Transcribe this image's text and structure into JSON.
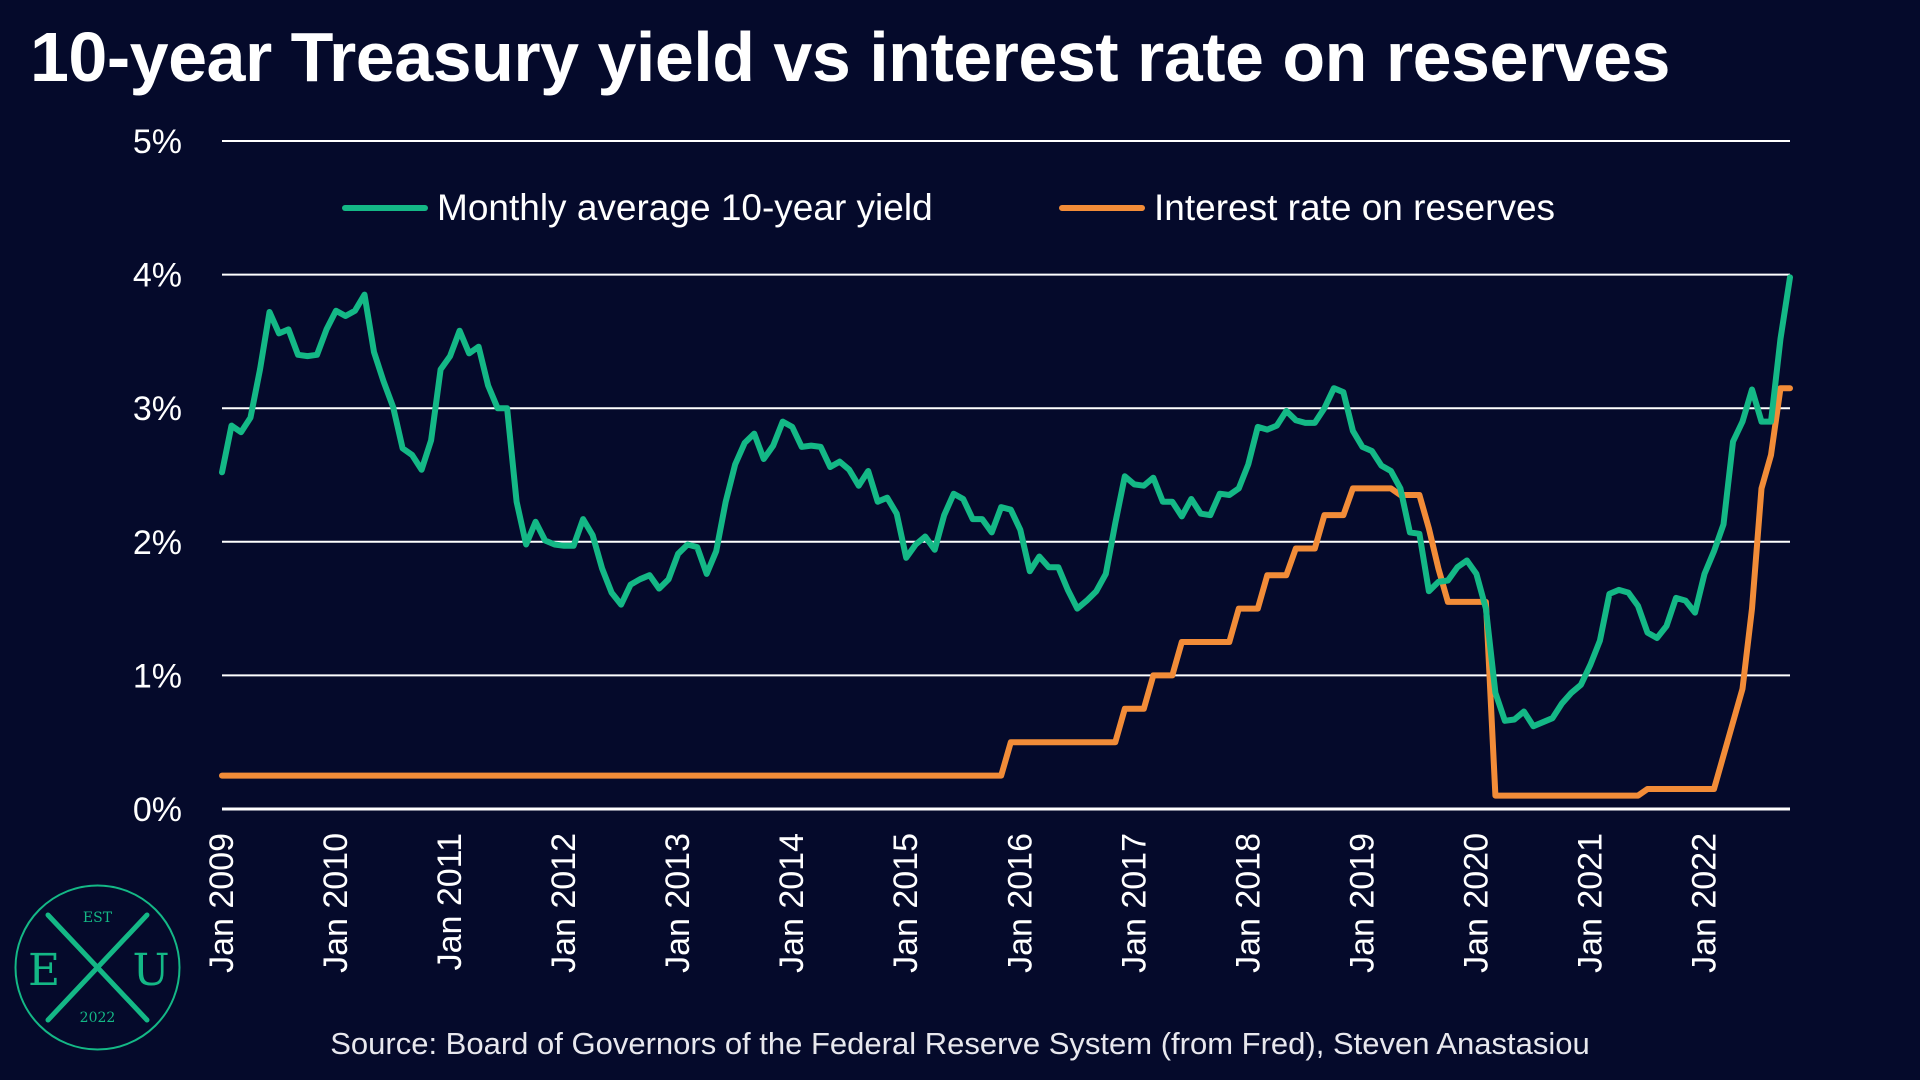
{
  "title": "10-year Treasury yield vs interest rate on reserves",
  "source": "Source: Board of Governors of the Federal Reserve System (from Fred), Steven Anastasiou",
  "colors": {
    "background": "#050a2b",
    "yield_line": "#14b886",
    "reserves_line": "#f28c38",
    "gridline": "#ffffff",
    "text": "#ffffff"
  },
  "logo": {
    "top": "EST",
    "left": "E",
    "center": "X",
    "right": "U",
    "bottom": "2022"
  },
  "chart_data": {
    "type": "line",
    "title": "10-year Treasury yield vs interest rate on reserves",
    "xlabel": "",
    "ylabel": "",
    "ylim": [
      0,
      5
    ],
    "yticks": [
      0,
      1,
      2,
      3,
      4,
      5
    ],
    "ytick_labels": [
      "0%",
      "1%",
      "2%",
      "3%",
      "4%",
      "5%"
    ],
    "x_start": "Jan 2009",
    "x_end": "Oct 2022",
    "xtick_labels": [
      "Jan 2009",
      "Jan 2010",
      "Jan 2011",
      "Jan 2012",
      "Jan 2013",
      "Jan 2014",
      "Jan 2015",
      "Jan 2016",
      "Jan 2017",
      "Jan 2018",
      "Jan 2019",
      "Jan 2020",
      "Jan 2021",
      "Jan 2022"
    ],
    "grid": true,
    "legend_position": "top-center",
    "series": [
      {
        "name": "Monthly average 10-year yield",
        "color": "#14b886",
        "x": [
          "Jan 2009",
          "Feb 2009",
          "Mar 2009",
          "Apr 2009",
          "May 2009",
          "Jun 2009",
          "Jul 2009",
          "Aug 2009",
          "Sep 2009",
          "Oct 2009",
          "Nov 2009",
          "Dec 2009",
          "Jan 2010",
          "Feb 2010",
          "Mar 2010",
          "Apr 2010",
          "May 2010",
          "Jun 2010",
          "Jul 2010",
          "Aug 2010",
          "Sep 2010",
          "Oct 2010",
          "Nov 2010",
          "Dec 2010",
          "Jan 2011",
          "Feb 2011",
          "Mar 2011",
          "Apr 2011",
          "May 2011",
          "Jun 2011",
          "Jul 2011",
          "Aug 2011",
          "Sep 2011",
          "Oct 2011",
          "Nov 2011",
          "Dec 2011",
          "Jan 2012",
          "Feb 2012",
          "Mar 2012",
          "Apr 2012",
          "May 2012",
          "Jun 2012",
          "Jul 2012",
          "Aug 2012",
          "Sep 2012",
          "Oct 2012",
          "Nov 2012",
          "Dec 2012",
          "Jan 2013",
          "Feb 2013",
          "Mar 2013",
          "Apr 2013",
          "May 2013",
          "Jun 2013",
          "Jul 2013",
          "Aug 2013",
          "Sep 2013",
          "Oct 2013",
          "Nov 2013",
          "Dec 2013",
          "Jan 2014",
          "Feb 2014",
          "Mar 2014",
          "Apr 2014",
          "May 2014",
          "Jun 2014",
          "Jul 2014",
          "Aug 2014",
          "Sep 2014",
          "Oct 2014",
          "Nov 2014",
          "Dec 2014",
          "Jan 2015",
          "Feb 2015",
          "Mar 2015",
          "Apr 2015",
          "May 2015",
          "Jun 2015",
          "Jul 2015",
          "Aug 2015",
          "Sep 2015",
          "Oct 2015",
          "Nov 2015",
          "Dec 2015",
          "Jan 2016",
          "Feb 2016",
          "Mar 2016",
          "Apr 2016",
          "May 2016",
          "Jun 2016",
          "Jul 2016",
          "Aug 2016",
          "Sep 2016",
          "Oct 2016",
          "Nov 2016",
          "Dec 2016",
          "Jan 2017",
          "Feb 2017",
          "Mar 2017",
          "Apr 2017",
          "May 2017",
          "Jun 2017",
          "Jul 2017",
          "Aug 2017",
          "Sep 2017",
          "Oct 2017",
          "Nov 2017",
          "Dec 2017",
          "Jan 2018",
          "Feb 2018",
          "Mar 2018",
          "Apr 2018",
          "May 2018",
          "Jun 2018",
          "Jul 2018",
          "Aug 2018",
          "Sep 2018",
          "Oct 2018",
          "Nov 2018",
          "Dec 2018",
          "Jan 2019",
          "Feb 2019",
          "Mar 2019",
          "Apr 2019",
          "May 2019",
          "Jun 2019",
          "Jul 2019",
          "Aug 2019",
          "Sep 2019",
          "Oct 2019",
          "Nov 2019",
          "Dec 2019",
          "Jan 2020",
          "Feb 2020",
          "Mar 2020",
          "Apr 2020",
          "May 2020",
          "Jun 2020",
          "Jul 2020",
          "Aug 2020",
          "Sep 2020",
          "Oct 2020",
          "Nov 2020",
          "Dec 2020",
          "Jan 2021",
          "Feb 2021",
          "Mar 2021",
          "Apr 2021",
          "May 2021",
          "Jun 2021",
          "Jul 2021",
          "Aug 2021",
          "Sep 2021",
          "Oct 2021",
          "Nov 2021",
          "Dec 2021",
          "Jan 2022",
          "Feb 2022",
          "Mar 2022",
          "Apr 2022",
          "May 2022",
          "Jun 2022",
          "Jul 2022",
          "Aug 2022",
          "Sep 2022",
          "Oct 2022"
        ],
        "values": [
          2.52,
          2.87,
          2.82,
          2.93,
          3.29,
          3.72,
          3.56,
          3.59,
          3.4,
          3.39,
          3.4,
          3.59,
          3.73,
          3.69,
          3.73,
          3.85,
          3.42,
          3.2,
          3.01,
          2.7,
          2.65,
          2.54,
          2.76,
          3.29,
          3.39,
          3.58,
          3.41,
          3.46,
          3.17,
          3.0,
          3.0,
          2.3,
          1.98,
          2.15,
          2.01,
          1.98,
          1.97,
          1.97,
          2.17,
          2.05,
          1.8,
          1.62,
          1.53,
          1.68,
          1.72,
          1.75,
          1.65,
          1.72,
          1.91,
          1.98,
          1.96,
          1.76,
          1.93,
          2.3,
          2.58,
          2.74,
          2.81,
          2.62,
          2.72,
          2.9,
          2.86,
          2.71,
          2.72,
          2.71,
          2.56,
          2.6,
          2.54,
          2.42,
          2.53,
          2.3,
          2.33,
          2.21,
          1.88,
          1.98,
          2.04,
          1.94,
          2.2,
          2.36,
          2.32,
          2.17,
          2.17,
          2.07,
          2.26,
          2.24,
          2.09,
          1.78,
          1.89,
          1.81,
          1.81,
          1.64,
          1.5,
          1.56,
          1.63,
          1.76,
          2.14,
          2.49,
          2.43,
          2.42,
          2.48,
          2.3,
          2.3,
          2.19,
          2.32,
          2.21,
          2.2,
          2.36,
          2.35,
          2.4,
          2.58,
          2.86,
          2.84,
          2.87,
          2.98,
          2.91,
          2.89,
          2.89,
          3.0,
          3.15,
          3.12,
          2.83,
          2.71,
          2.68,
          2.57,
          2.53,
          2.4,
          2.07,
          2.06,
          1.63,
          1.7,
          1.71,
          1.81,
          1.86,
          1.76,
          1.5,
          0.87,
          0.66,
          0.67,
          0.73,
          0.62,
          0.65,
          0.68,
          0.79,
          0.87,
          0.93,
          1.08,
          1.26,
          1.61,
          1.64,
          1.62,
          1.52,
          1.32,
          1.28,
          1.37,
          1.58,
          1.56,
          1.47,
          1.76,
          1.93,
          2.13,
          2.75,
          2.9,
          3.14,
          2.9,
          2.9,
          3.52,
          3.98
        ]
      },
      {
        "name": "Interest rate on reserves",
        "color": "#f28c38",
        "x": [
          "Jan 2009",
          "Nov 2015",
          "Dec 2015",
          "Nov 2016",
          "Dec 2016",
          "Feb 2017",
          "Mar 2017",
          "May 2017",
          "Jun 2017",
          "Nov 2017",
          "Dec 2017",
          "Feb 2018",
          "Mar 2018",
          "May 2018",
          "Jun 2018",
          "Aug 2018",
          "Sep 2018",
          "Nov 2018",
          "Dec 2018",
          "Apr 2019",
          "May 2019",
          "Jul 2019",
          "Aug 2019",
          "Sep 2019",
          "Oct 2019",
          "Feb 2020",
          "Mar 2020",
          "Apr 2020",
          "Jun 2021",
          "Jul 2021",
          "Feb 2022",
          "Mar 2022",
          "Apr 2022",
          "May 2022",
          "Jun 2022",
          "Jul 2022",
          "Aug 2022",
          "Sep 2022",
          "Oct 2022"
        ],
        "values": [
          0.25,
          0.25,
          0.5,
          0.5,
          0.75,
          0.75,
          1.0,
          1.0,
          1.25,
          1.25,
          1.5,
          1.5,
          1.75,
          1.75,
          1.95,
          1.95,
          2.2,
          2.2,
          2.4,
          2.4,
          2.35,
          2.35,
          2.1,
          1.8,
          1.55,
          1.55,
          0.1,
          0.1,
          0.1,
          0.15,
          0.15,
          0.4,
          0.65,
          0.9,
          1.5,
          2.4,
          2.65,
          3.15,
          3.15
        ]
      }
    ]
  }
}
